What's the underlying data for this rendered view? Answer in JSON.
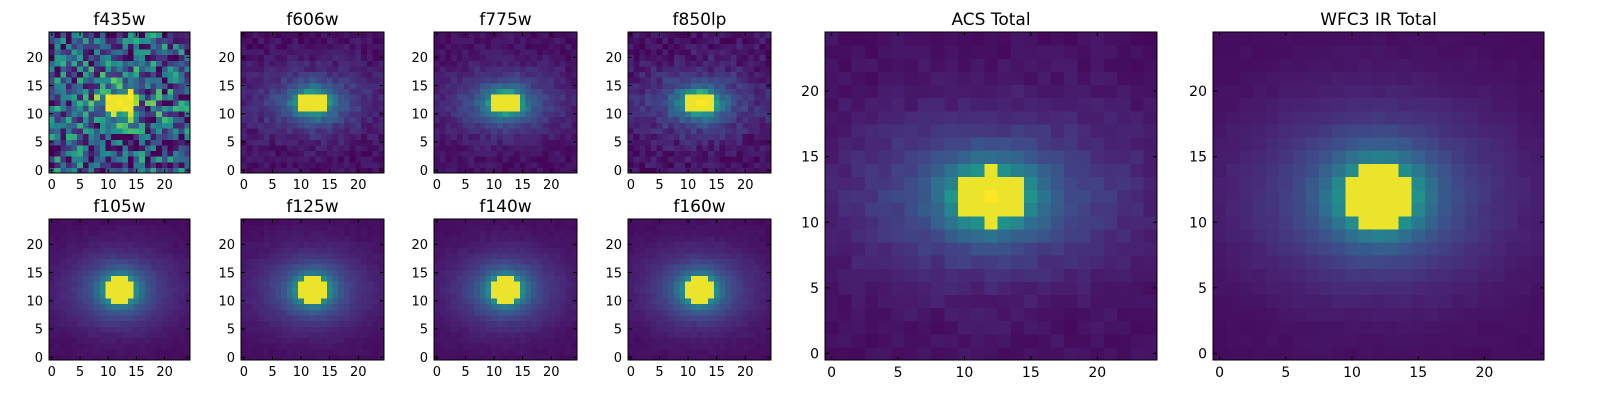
{
  "chart_data": [
    {
      "type": "heatmap",
      "title": "f435w",
      "xlim": [
        0,
        24
      ],
      "ylim": [
        0,
        24
      ],
      "xticks": [
        0,
        5,
        10,
        15,
        20
      ],
      "yticks": [
        0,
        5,
        10,
        15,
        20
      ],
      "center": [
        12,
        12
      ],
      "peak_sigma": [
        2.0,
        1.8
      ],
      "halo_sigma": [
        6.0,
        4.0
      ],
      "halo_amp": 0.15,
      "background": 0.32,
      "noise": 0.42,
      "colormap": "viridis"
    },
    {
      "type": "heatmap",
      "title": "f606w",
      "xlim": [
        0,
        24
      ],
      "ylim": [
        0,
        24
      ],
      "xticks": [
        0,
        5,
        10,
        15,
        20
      ],
      "yticks": [
        0,
        5,
        10,
        15,
        20
      ],
      "center": [
        12,
        12
      ],
      "peak_sigma": [
        2.4,
        1.8
      ],
      "halo_sigma": [
        7.2,
        4.2
      ],
      "halo_amp": 0.3,
      "background": 0.05,
      "noise": 0.06,
      "colormap": "viridis"
    },
    {
      "type": "heatmap",
      "title": "f775w",
      "xlim": [
        0,
        24
      ],
      "ylim": [
        0,
        24
      ],
      "xticks": [
        0,
        5,
        10,
        15,
        20
      ],
      "yticks": [
        0,
        5,
        10,
        15,
        20
      ],
      "center": [
        12,
        12
      ],
      "peak_sigma": [
        2.4,
        1.8
      ],
      "halo_sigma": [
        7.2,
        4.2
      ],
      "halo_amp": 0.3,
      "background": 0.05,
      "noise": 0.05,
      "colormap": "viridis"
    },
    {
      "type": "heatmap",
      "title": "f850lp",
      "xlim": [
        0,
        24
      ],
      "ylim": [
        0,
        24
      ],
      "xticks": [
        0,
        5,
        10,
        15,
        20
      ],
      "yticks": [
        0,
        5,
        10,
        15,
        20
      ],
      "center": [
        12,
        12
      ],
      "peak_sigma": [
        2.4,
        1.8
      ],
      "halo_sigma": [
        7.2,
        4.2
      ],
      "halo_amp": 0.3,
      "background": 0.06,
      "noise": 0.08,
      "colormap": "viridis"
    },
    {
      "type": "heatmap",
      "title": "f105w",
      "xlim": [
        0,
        24
      ],
      "ylim": [
        0,
        24
      ],
      "xticks": [
        0,
        5,
        10,
        15,
        20
      ],
      "yticks": [
        0,
        5,
        10,
        15,
        20
      ],
      "center": [
        12,
        12
      ],
      "peak_sigma": [
        2.4,
        2.1
      ],
      "halo_sigma": [
        7.0,
        5.0
      ],
      "halo_amp": 0.3,
      "background": 0.04,
      "noise": 0.015,
      "colormap": "viridis"
    },
    {
      "type": "heatmap",
      "title": "f125w",
      "xlim": [
        0,
        24
      ],
      "ylim": [
        0,
        24
      ],
      "xticks": [
        0,
        5,
        10,
        15,
        20
      ],
      "yticks": [
        0,
        5,
        10,
        15,
        20
      ],
      "center": [
        12,
        12
      ],
      "peak_sigma": [
        2.4,
        2.1
      ],
      "halo_sigma": [
        7.0,
        5.0
      ],
      "halo_amp": 0.3,
      "background": 0.04,
      "noise": 0.015,
      "colormap": "viridis"
    },
    {
      "type": "heatmap",
      "title": "f140w",
      "xlim": [
        0,
        24
      ],
      "ylim": [
        0,
        24
      ],
      "xticks": [
        0,
        5,
        10,
        15,
        20
      ],
      "yticks": [
        0,
        5,
        10,
        15,
        20
      ],
      "center": [
        12,
        12
      ],
      "peak_sigma": [
        2.4,
        2.1
      ],
      "halo_sigma": [
        7.0,
        5.0
      ],
      "halo_amp": 0.3,
      "background": 0.04,
      "noise": 0.015,
      "colormap": "viridis"
    },
    {
      "type": "heatmap",
      "title": "f160w",
      "xlim": [
        0,
        24
      ],
      "ylim": [
        0,
        24
      ],
      "xticks": [
        0,
        5,
        10,
        15,
        20
      ],
      "yticks": [
        0,
        5,
        10,
        15,
        20
      ],
      "center": [
        12,
        12
      ],
      "peak_sigma": [
        2.4,
        2.1
      ],
      "halo_sigma": [
        7.0,
        5.0
      ],
      "halo_amp": 0.3,
      "background": 0.04,
      "noise": 0.015,
      "colormap": "viridis"
    },
    {
      "type": "heatmap",
      "title": "ACS Total",
      "xlim": [
        0,
        24
      ],
      "ylim": [
        0,
        24
      ],
      "xticks": [
        0,
        5,
        10,
        15,
        20
      ],
      "yticks": [
        0,
        5,
        10,
        15,
        20
      ],
      "center": [
        12,
        12
      ],
      "peak_sigma": [
        2.4,
        1.9
      ],
      "halo_sigma": [
        7.5,
        4.3
      ],
      "halo_amp": 0.3,
      "background": 0.05,
      "noise": 0.03,
      "colormap": "viridis"
    },
    {
      "type": "heatmap",
      "title": "WFC3 IR Total",
      "xlim": [
        0,
        24
      ],
      "ylim": [
        0,
        24
      ],
      "xticks": [
        0,
        5,
        10,
        15,
        20
      ],
      "yticks": [
        0,
        5,
        10,
        15,
        20
      ],
      "center": [
        12,
        12
      ],
      "peak_sigma": [
        2.5,
        2.2
      ],
      "halo_sigma": [
        7.0,
        5.0
      ],
      "halo_amp": 0.3,
      "background": 0.04,
      "noise": 0.01,
      "colormap": "viridis"
    }
  ]
}
